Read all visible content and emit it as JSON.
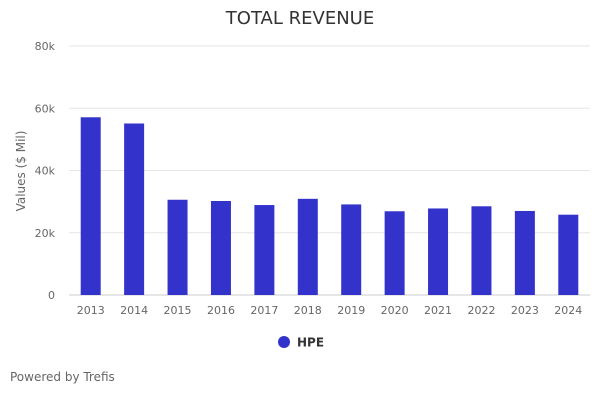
{
  "chart_data": {
    "type": "bar",
    "title": "TOTAL REVENUE",
    "xlabel": "",
    "ylabel": "Values ($ Mil)",
    "categories": [
      "2013",
      "2014",
      "2015",
      "2016",
      "2017",
      "2018",
      "2019",
      "2020",
      "2021",
      "2022",
      "2023",
      "2024"
    ],
    "series": [
      {
        "name": "HPE",
        "color": "#3333cc",
        "values": [
          57100,
          55100,
          30600,
          30200,
          28900,
          30900,
          29100,
          26900,
          27800,
          28500,
          27000,
          25800
        ]
      }
    ],
    "ylim": [
      0,
      80000
    ],
    "yticks": [
      0,
      20000,
      40000,
      60000,
      80000
    ],
    "ytick_labels": [
      "0",
      "20k",
      "40k",
      "60k",
      "80k"
    ],
    "grid": true,
    "legend_placement": "bottom-center"
  },
  "footer": {
    "credit": "Powered by Trefis"
  },
  "colors": {
    "bar": "#3333cc",
    "grid": "#e6e6e6",
    "axis": "#cccccc"
  }
}
